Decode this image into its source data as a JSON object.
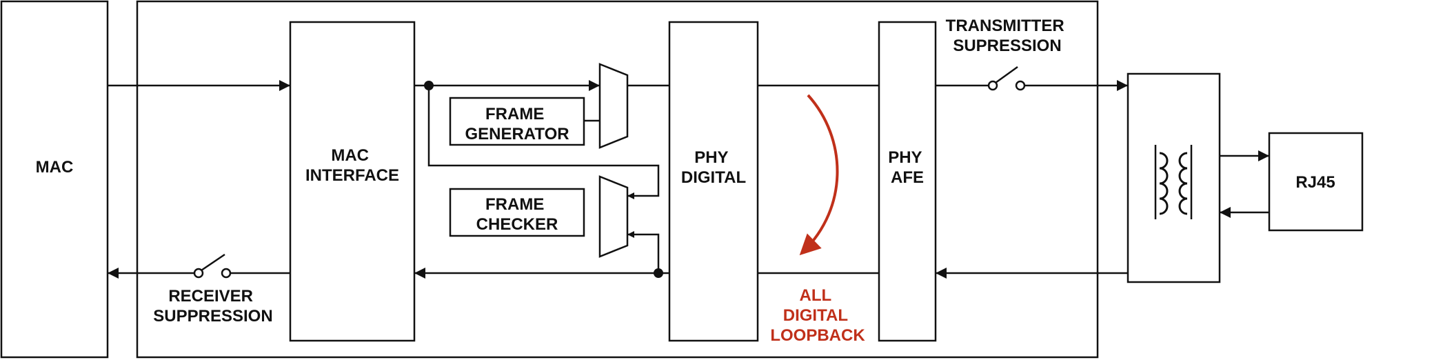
{
  "blocks": {
    "mac": "MAC",
    "mac_interface": [
      "MAC",
      "INTERFACE"
    ],
    "frame_generator": [
      "FRAME",
      "GENERATOR"
    ],
    "frame_checker": [
      "FRAME",
      "CHECKER"
    ],
    "phy_digital": [
      "PHY",
      "DIGITAL"
    ],
    "phy_afe": [
      "PHY",
      "AFE"
    ],
    "rj45": "RJ45"
  },
  "switches": {
    "transmitter": [
      "TRANSMITTER",
      "SUPRESSION"
    ],
    "receiver": [
      "RECEIVER",
      "SUPPRESSION"
    ]
  },
  "loopback": {
    "label": [
      "ALL",
      "DIGITAL",
      "LOOPBACK"
    ]
  },
  "colors": {
    "line": "#111111",
    "loopback_accent": "#c0301a",
    "background": "#ffffff"
  },
  "icons": [
    "transformer-icon",
    "loopback-arrow-icon",
    "switch-icon",
    "mux-icon"
  ]
}
